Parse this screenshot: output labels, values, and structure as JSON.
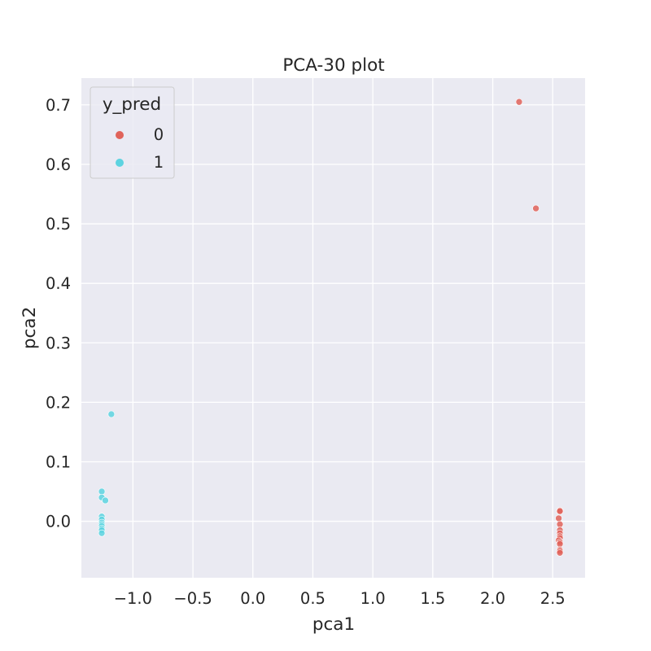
{
  "chart_data": {
    "type": "scatter",
    "title": "PCA-30 plot",
    "xlabel": "pca1",
    "ylabel": "pca2",
    "xlim": [
      -1.43,
      2.77
    ],
    "ylim": [
      -0.095,
      0.745
    ],
    "xticks": [
      -1.0,
      -0.5,
      0.0,
      0.5,
      1.0,
      1.5,
      2.0,
      2.5
    ],
    "xtick_labels": [
      "−1.0",
      "−0.5",
      "0.0",
      "0.5",
      "1.0",
      "1.5",
      "2.0",
      "2.5"
    ],
    "yticks": [
      0.0,
      0.1,
      0.2,
      0.3,
      0.4,
      0.5,
      0.6,
      0.7
    ],
    "ytick_labels": [
      "0.0",
      "0.1",
      "0.2",
      "0.3",
      "0.4",
      "0.5",
      "0.6",
      "0.7"
    ],
    "grid": true,
    "legend": {
      "title": "y_pred",
      "placement": "top-left"
    },
    "series": [
      {
        "name": "0",
        "color": "#e0635a",
        "points": [
          [
            2.22,
            0.705
          ],
          [
            2.36,
            0.526
          ],
          [
            2.56,
            0.018
          ],
          [
            2.56,
            0.017
          ],
          [
            2.55,
            0.005
          ],
          [
            2.56,
            -0.005
          ],
          [
            2.56,
            -0.015
          ],
          [
            2.56,
            -0.02
          ],
          [
            2.56,
            -0.025
          ],
          [
            2.56,
            -0.028
          ],
          [
            2.55,
            -0.032
          ],
          [
            2.56,
            -0.035
          ],
          [
            2.56,
            -0.038
          ],
          [
            2.56,
            -0.048
          ],
          [
            2.56,
            -0.05
          ],
          [
            2.56,
            -0.053
          ]
        ]
      },
      {
        "name": "1",
        "color": "#5dd3e0",
        "points": [
          [
            -1.18,
            0.18
          ],
          [
            -1.26,
            0.05
          ],
          [
            -1.26,
            0.04
          ],
          [
            -1.23,
            0.035
          ],
          [
            -1.26,
            0.008
          ],
          [
            -1.26,
            0.003
          ],
          [
            -1.26,
            -0.002
          ],
          [
            -1.26,
            -0.005
          ],
          [
            -1.26,
            -0.008
          ],
          [
            -1.26,
            -0.012
          ],
          [
            -1.26,
            -0.015
          ],
          [
            -1.26,
            -0.02
          ]
        ]
      }
    ]
  }
}
